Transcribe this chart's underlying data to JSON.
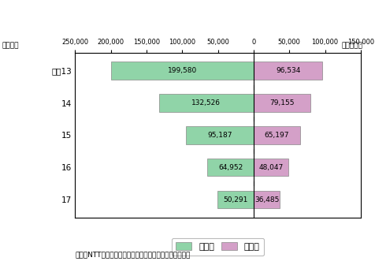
{
  "years": [
    "平成13",
    "14",
    "15",
    "16",
    "17"
  ],
  "residential": [
    199580,
    132526,
    95187,
    64952,
    50291
  ],
  "business": [
    96534,
    79155,
    65197,
    48047,
    36485
  ],
  "residential_color": "#90d4a8",
  "business_color": "#d4a0c8",
  "xlim_left": -250000,
  "xlim_right": 150000,
  "xticks": [
    -250000,
    -200000,
    -150000,
    -100000,
    -50000,
    0,
    50000,
    100000,
    150000
  ],
  "xtick_labels": [
    "250,000",
    "200,000",
    "150,000",
    "100,000",
    "50,000",
    "0",
    "50,000",
    "100,000",
    "150,000"
  ],
  "title_top_right": "（万時間）",
  "ylabel_top_left": "（年度）",
  "legend_residential": "住宅用",
  "legend_business": "事務用",
  "footnote": "東・西NTT「電気通信役務通信量等状況報告」により作成",
  "bar_height": 0.55
}
